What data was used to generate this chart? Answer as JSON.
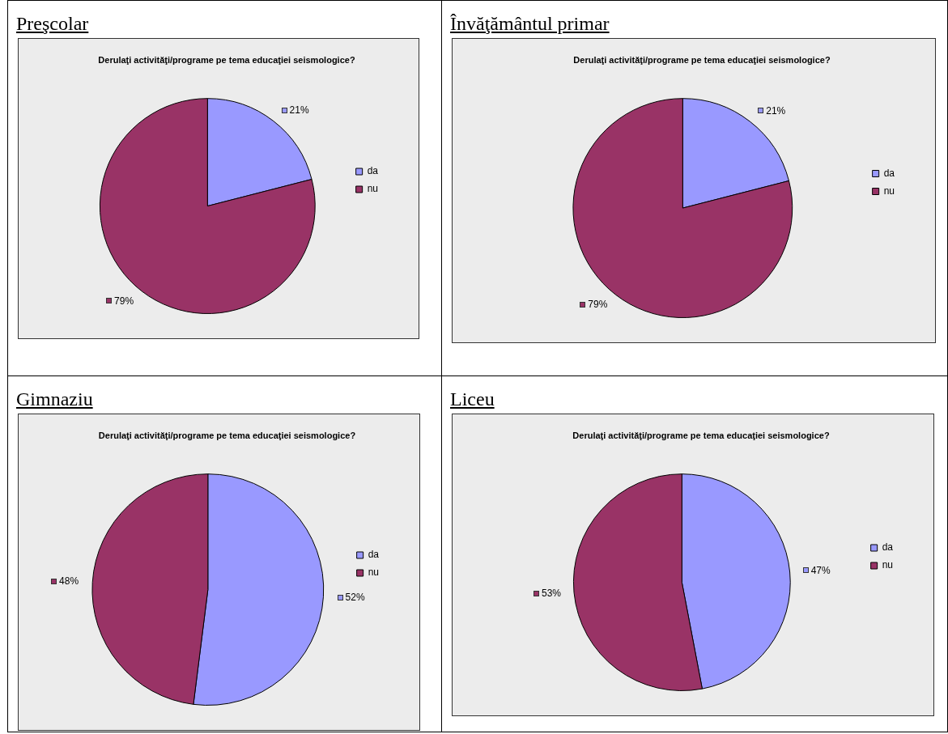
{
  "chart_data": [
    {
      "type": "pie",
      "title": "Preşcolar",
      "subtitle": "Derulaţi activităţi/programe pe tema educaţiei seismologice?",
      "categories": [
        "da",
        "nu"
      ],
      "values": [
        21,
        79
      ],
      "colors": [
        "#9999ff",
        "#993366"
      ],
      "value_labels": [
        "21%",
        "79%"
      ],
      "legend": "right"
    },
    {
      "type": "pie",
      "title": "Învăţământul primar",
      "subtitle": "Derulaţi activităţi/programe pe tema educaţiei seismologice?",
      "categories": [
        "da",
        "nu"
      ],
      "values": [
        21,
        79
      ],
      "colors": [
        "#9999ff",
        "#993366"
      ],
      "value_labels": [
        "21%",
        "79%"
      ],
      "legend": "right"
    },
    {
      "type": "pie",
      "title": "Gimnaziu",
      "subtitle": "Derulaţi activităţi/programe pe tema educaţiei seismologice?",
      "categories": [
        "da",
        "nu"
      ],
      "values": [
        52,
        48
      ],
      "colors": [
        "#9999ff",
        "#993366"
      ],
      "value_labels": [
        "52%",
        "48%"
      ],
      "legend": "right"
    },
    {
      "type": "pie",
      "title": "Liceu",
      "subtitle": "Derulaţi activităţi/programe pe tema educaţiei seismologice?",
      "categories": [
        "da",
        "nu"
      ],
      "values": [
        47,
        53
      ],
      "colors": [
        "#9999ff",
        "#993366"
      ],
      "value_labels": [
        "47%",
        "53%"
      ],
      "legend": "right"
    }
  ]
}
